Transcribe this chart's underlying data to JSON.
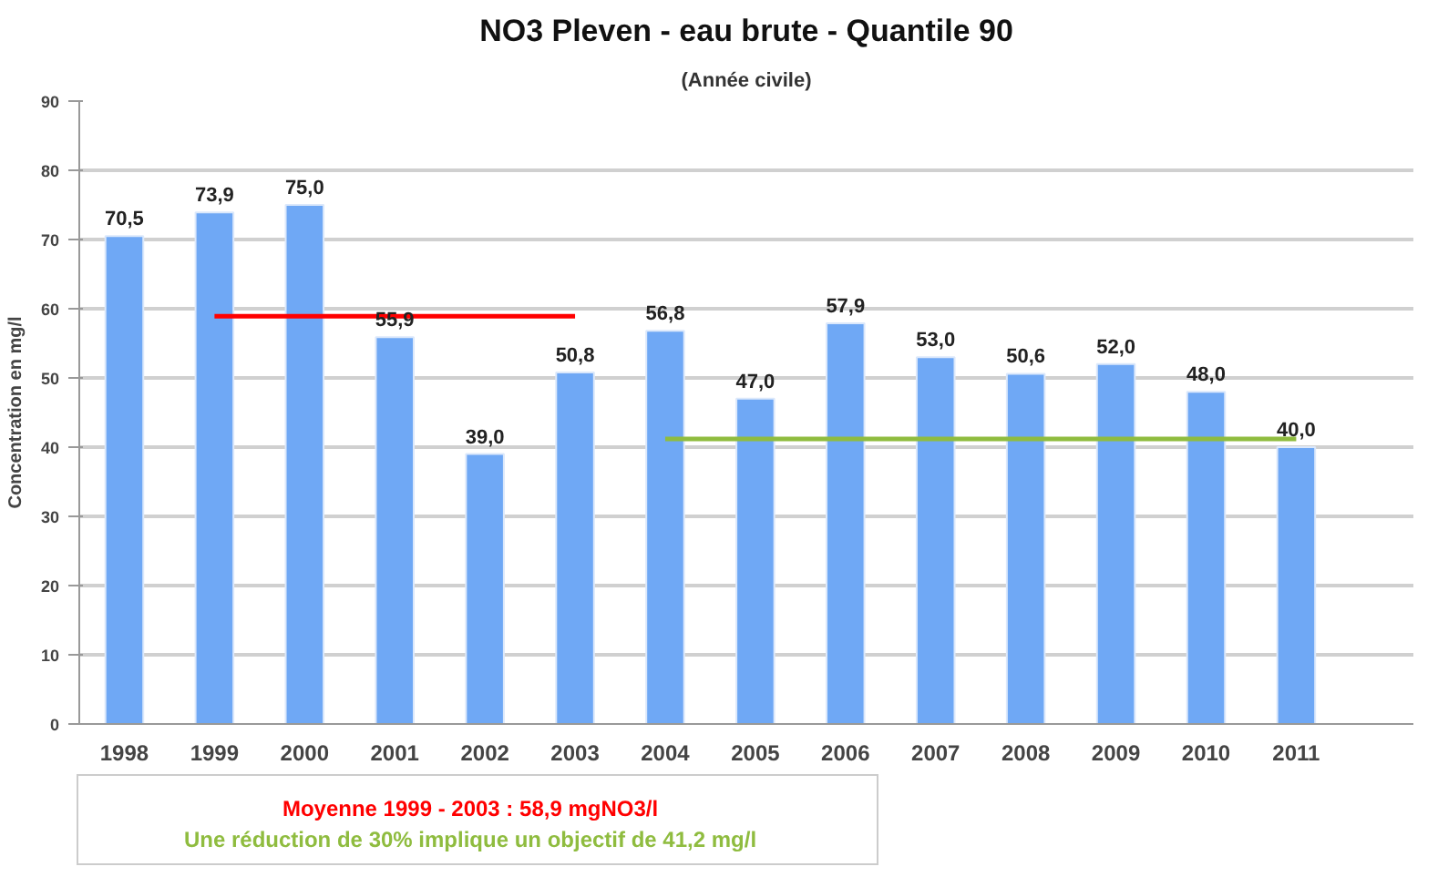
{
  "chart_data": {
    "type": "bar",
    "title": "NO3 Pleven - eau brute - Quantile 90",
    "subtitle": "(Année civile)",
    "ylabel": "Concentration en mg/l",
    "categories": [
      "1998",
      "1999",
      "2000",
      "2001",
      "2002",
      "2003",
      "2004",
      "2005",
      "2006",
      "2007",
      "2008",
      "2009",
      "2010",
      "2011"
    ],
    "series": [
      {
        "color": "#6fa8f5",
        "values": [
          70.5,
          73.9,
          75.0,
          55.9,
          39.0,
          50.8,
          56.8,
          47.0,
          57.9,
          53.0,
          50.6,
          52.0,
          48.0,
          40.0
        ],
        "value_labels": [
          "70,5",
          "73,9",
          "75,0",
          "55,9",
          "39,0",
          "50,8",
          "56,8",
          "47,0",
          "57,9",
          "53,0",
          "50,6",
          "52,0",
          "48,0",
          "40,0"
        ]
      },
      {
        "type": "line",
        "color": "#ff0000",
        "values": [
          null,
          58.9,
          58.9,
          58.9,
          58.9,
          58.9,
          null,
          null,
          null,
          null,
          null,
          null,
          null,
          null
        ]
      },
      {
        "type": "line",
        "color": "#8fbc3f",
        "values": [
          null,
          null,
          null,
          null,
          null,
          null,
          41.2,
          41.2,
          41.2,
          41.2,
          41.2,
          41.2,
          41.2,
          41.2
        ]
      }
    ],
    "ylim": [
      0,
      90
    ],
    "yticks": [
      0,
      10,
      20,
      30,
      40,
      50,
      60,
      70,
      80,
      90
    ],
    "grid": "y",
    "annotations": [
      "Moyenne 1999 - 2003 : 58,9 mgNO3/l",
      "Une réduction de 30% implique un objectif de  41,2 mg/l"
    ]
  }
}
